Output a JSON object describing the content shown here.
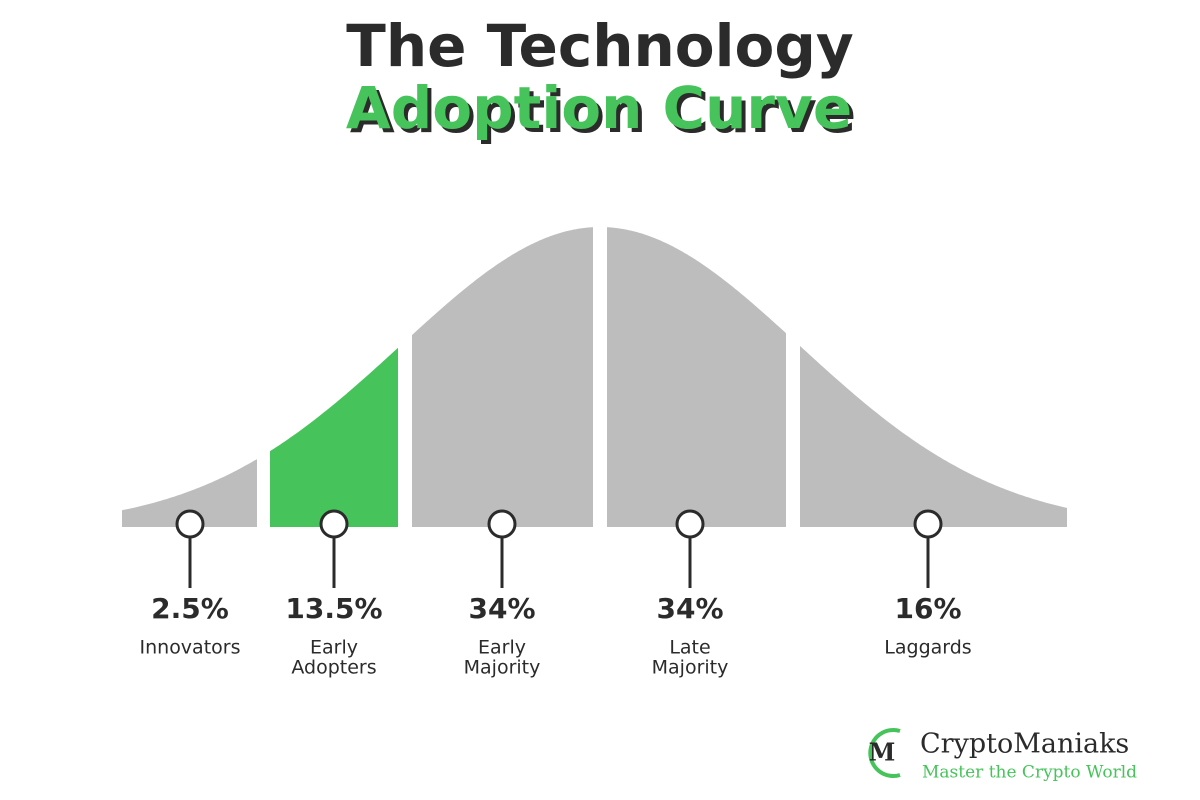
{
  "title": {
    "line1": "The Technology",
    "line2": "Adoption Curve"
  },
  "segments": [
    {
      "percent": "2.5%",
      "label": [
        "Innovators"
      ]
    },
    {
      "percent": "13.5%",
      "label": [
        "Early",
        "Adopters"
      ]
    },
    {
      "percent": "34%",
      "label": [
        "Early",
        "Majority"
      ]
    },
    {
      "percent": "34%",
      "label": [
        "Late",
        "Majority"
      ]
    },
    {
      "percent": "16%",
      "label": [
        "Laggards"
      ]
    }
  ],
  "logo": {
    "mark": "M",
    "name": "CryptoManiaks",
    "tagline": "Master the Crypto World"
  }
}
